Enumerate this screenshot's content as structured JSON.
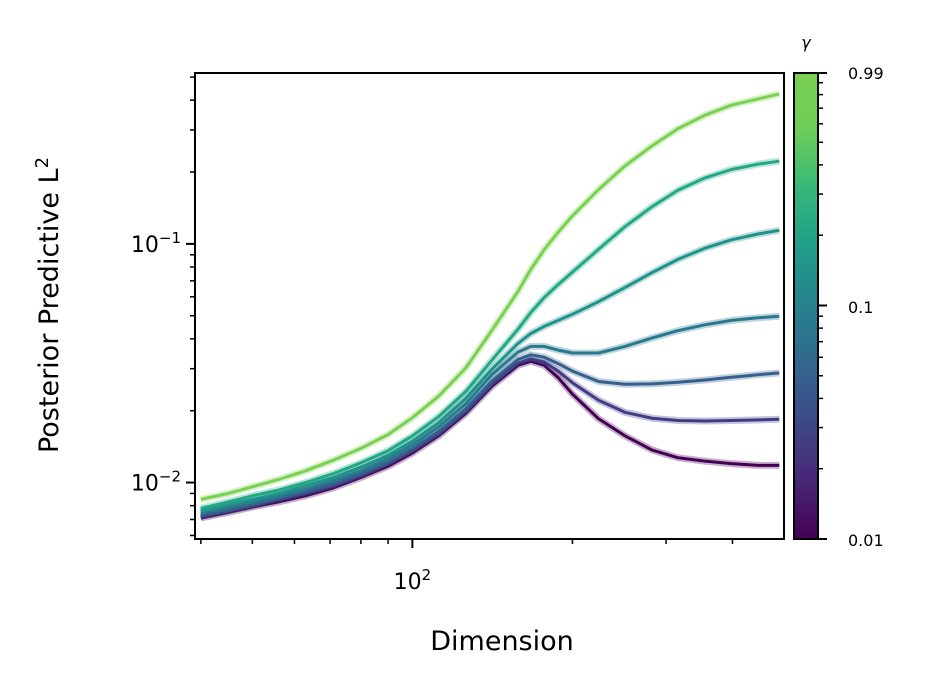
{
  "chart_data": {
    "type": "line",
    "title": "",
    "xlabel": "Dimension",
    "ylabel_main": "Posterior Predictive L",
    "ylabel_sup": "2",
    "x_scale": "log",
    "y_scale": "log",
    "xlim": [
      39,
      500
    ],
    "ylim": [
      0.0058,
      0.52
    ],
    "x_ticks": [
      {
        "value": 100,
        "base": "10",
        "exp": "2"
      }
    ],
    "y_ticks": [
      {
        "value": 0.1,
        "base": "10",
        "exp": "−1"
      },
      {
        "value": 0.01,
        "base": "10",
        "exp": "−2"
      }
    ],
    "colorbar": {
      "label": "γ",
      "tick_labels": [
        "0.99",
        "0.1",
        "0.01"
      ],
      "scale": "log",
      "range": [
        0.01,
        0.99
      ],
      "colormap": "viridis"
    },
    "x": [
      40,
      45,
      50,
      56,
      63,
      71,
      80,
      90,
      100,
      112,
      126,
      141,
      158,
      167,
      177,
      188,
      200,
      224,
      251,
      282,
      316,
      355,
      398,
      447,
      490
    ],
    "series": [
      {
        "color": "#440154",
        "values": [
          0.0071,
          0.0075,
          0.0079,
          0.0083,
          0.0088,
          0.0095,
          0.0105,
          0.0117,
          0.0133,
          0.0157,
          0.0195,
          0.0253,
          0.031,
          0.0322,
          0.031,
          0.0275,
          0.0235,
          0.0185,
          0.0157,
          0.0137,
          0.0127,
          0.0123,
          0.012,
          0.0118,
          0.0118
        ]
      },
      {
        "color": "#413d84",
        "values": [
          0.0072,
          0.0076,
          0.008,
          0.0085,
          0.009,
          0.0097,
          0.0107,
          0.012,
          0.0136,
          0.016,
          0.0199,
          0.0258,
          0.0317,
          0.033,
          0.032,
          0.0293,
          0.0262,
          0.0221,
          0.0197,
          0.0186,
          0.0182,
          0.0181,
          0.0182,
          0.0183,
          0.0184
        ]
      },
      {
        "color": "#355f8d",
        "values": [
          0.0073,
          0.0077,
          0.0081,
          0.0086,
          0.0092,
          0.0099,
          0.0109,
          0.0122,
          0.0139,
          0.0164,
          0.0204,
          0.0266,
          0.0328,
          0.0343,
          0.0335,
          0.0315,
          0.0293,
          0.0265,
          0.0258,
          0.0259,
          0.0263,
          0.0269,
          0.0276,
          0.0283,
          0.0288
        ]
      },
      {
        "color": "#2a788e",
        "values": [
          0.0075,
          0.0079,
          0.0083,
          0.0088,
          0.0094,
          0.0102,
          0.0112,
          0.0126,
          0.0144,
          0.0171,
          0.0214,
          0.0283,
          0.0352,
          0.0372,
          0.0372,
          0.0359,
          0.0349,
          0.0349,
          0.0372,
          0.0403,
          0.0433,
          0.0458,
          0.0478,
          0.049,
          0.0497
        ]
      },
      {
        "color": "#21918c",
        "values": [
          0.0076,
          0.0081,
          0.0085,
          0.009,
          0.0097,
          0.0105,
          0.0116,
          0.013,
          0.0149,
          0.0178,
          0.0225,
          0.0298,
          0.0383,
          0.0421,
          0.0451,
          0.0478,
          0.0507,
          0.0573,
          0.0656,
          0.0757,
          0.0862,
          0.0959,
          0.104,
          0.11,
          0.114
        ]
      },
      {
        "color": "#22a884",
        "values": [
          0.0078,
          0.0083,
          0.0088,
          0.0093,
          0.01,
          0.0109,
          0.0121,
          0.0136,
          0.0157,
          0.0189,
          0.0241,
          0.0325,
          0.0439,
          0.0516,
          0.0596,
          0.0676,
          0.0762,
          0.0949,
          0.118,
          0.143,
          0.168,
          0.189,
          0.205,
          0.216,
          0.222
        ]
      },
      {
        "color": "#7ad151",
        "values": [
          0.0085,
          0.009,
          0.0096,
          0.0103,
          0.0112,
          0.0124,
          0.0139,
          0.0159,
          0.0187,
          0.023,
          0.0302,
          0.0433,
          0.0632,
          0.0782,
          0.0945,
          0.112,
          0.131,
          0.169,
          0.212,
          0.257,
          0.304,
          0.346,
          0.381,
          0.405,
          0.425
        ]
      }
    ]
  }
}
